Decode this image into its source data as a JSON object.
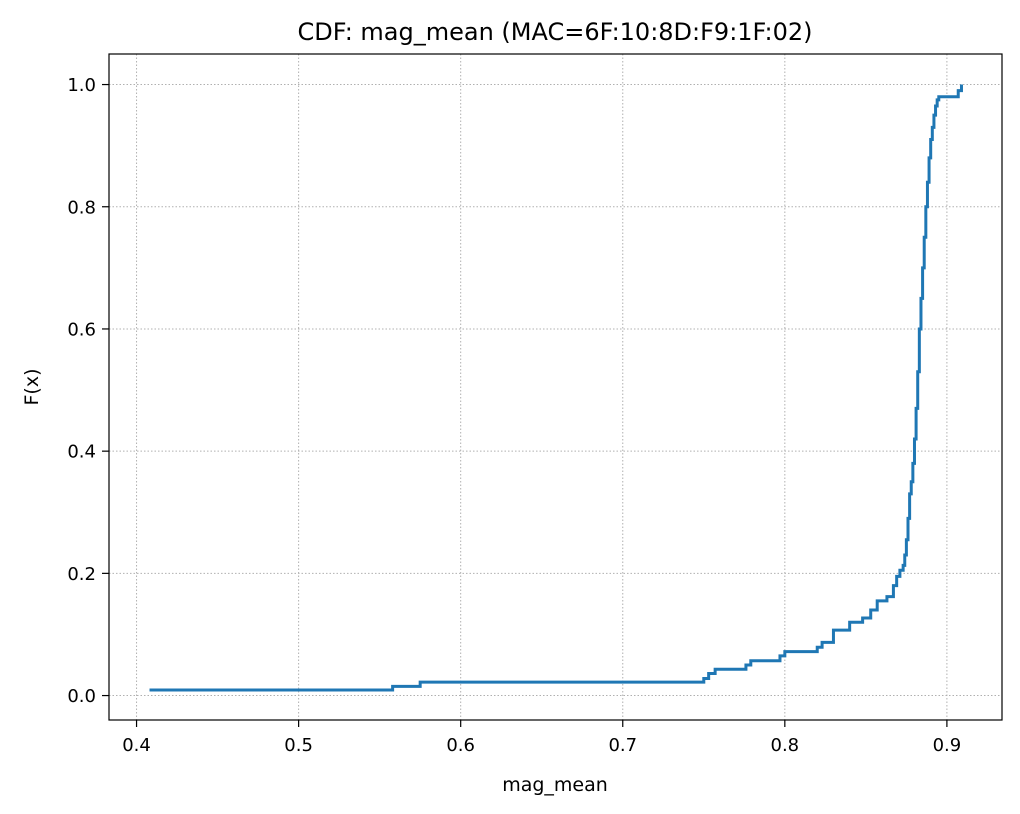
{
  "chart_data": {
    "type": "line",
    "title": "CDF: mag_mean (MAC=6F:10:8D:F9:1F:02)",
    "xlabel": "mag_mean",
    "ylabel": "F(x)",
    "xlim": [
      0.383,
      0.934
    ],
    "ylim": [
      -0.04,
      1.05
    ],
    "xticks": [
      0.4,
      0.5,
      0.6,
      0.7,
      0.8,
      0.9
    ],
    "xtick_labels": [
      "0.4",
      "0.5",
      "0.6",
      "0.7",
      "0.8",
      "0.9"
    ],
    "yticks": [
      0.0,
      0.2,
      0.4,
      0.6,
      0.8,
      1.0
    ],
    "ytick_labels": [
      "0.0",
      "0.2",
      "0.4",
      "0.6",
      "0.8",
      "1.0"
    ],
    "grid": true,
    "step": "post",
    "series": [
      {
        "color": "#1f77b4",
        "x": [
          0.408,
          0.558,
          0.575,
          0.75,
          0.753,
          0.757,
          0.776,
          0.779,
          0.786,
          0.797,
          0.8,
          0.82,
          0.823,
          0.83,
          0.84,
          0.848,
          0.853,
          0.857,
          0.863,
          0.867,
          0.869,
          0.871,
          0.873,
          0.874,
          0.875,
          0.876,
          0.877,
          0.878,
          0.879,
          0.88,
          0.881,
          0.882,
          0.883,
          0.884,
          0.885,
          0.886,
          0.887,
          0.888,
          0.889,
          0.89,
          0.891,
          0.892,
          0.893,
          0.894,
          0.895,
          0.896,
          0.907,
          0.909,
          0.909
        ],
        "y": [
          0.009,
          0.015,
          0.022,
          0.028,
          0.036,
          0.043,
          0.05,
          0.057,
          0.057,
          0.065,
          0.072,
          0.079,
          0.087,
          0.107,
          0.12,
          0.127,
          0.14,
          0.155,
          0.162,
          0.18,
          0.195,
          0.205,
          0.213,
          0.23,
          0.255,
          0.29,
          0.33,
          0.35,
          0.38,
          0.42,
          0.47,
          0.53,
          0.6,
          0.65,
          0.7,
          0.75,
          0.8,
          0.84,
          0.88,
          0.91,
          0.93,
          0.95,
          0.965,
          0.975,
          0.98,
          0.98,
          0.99,
          0.995,
          1.0
        ]
      }
    ]
  }
}
